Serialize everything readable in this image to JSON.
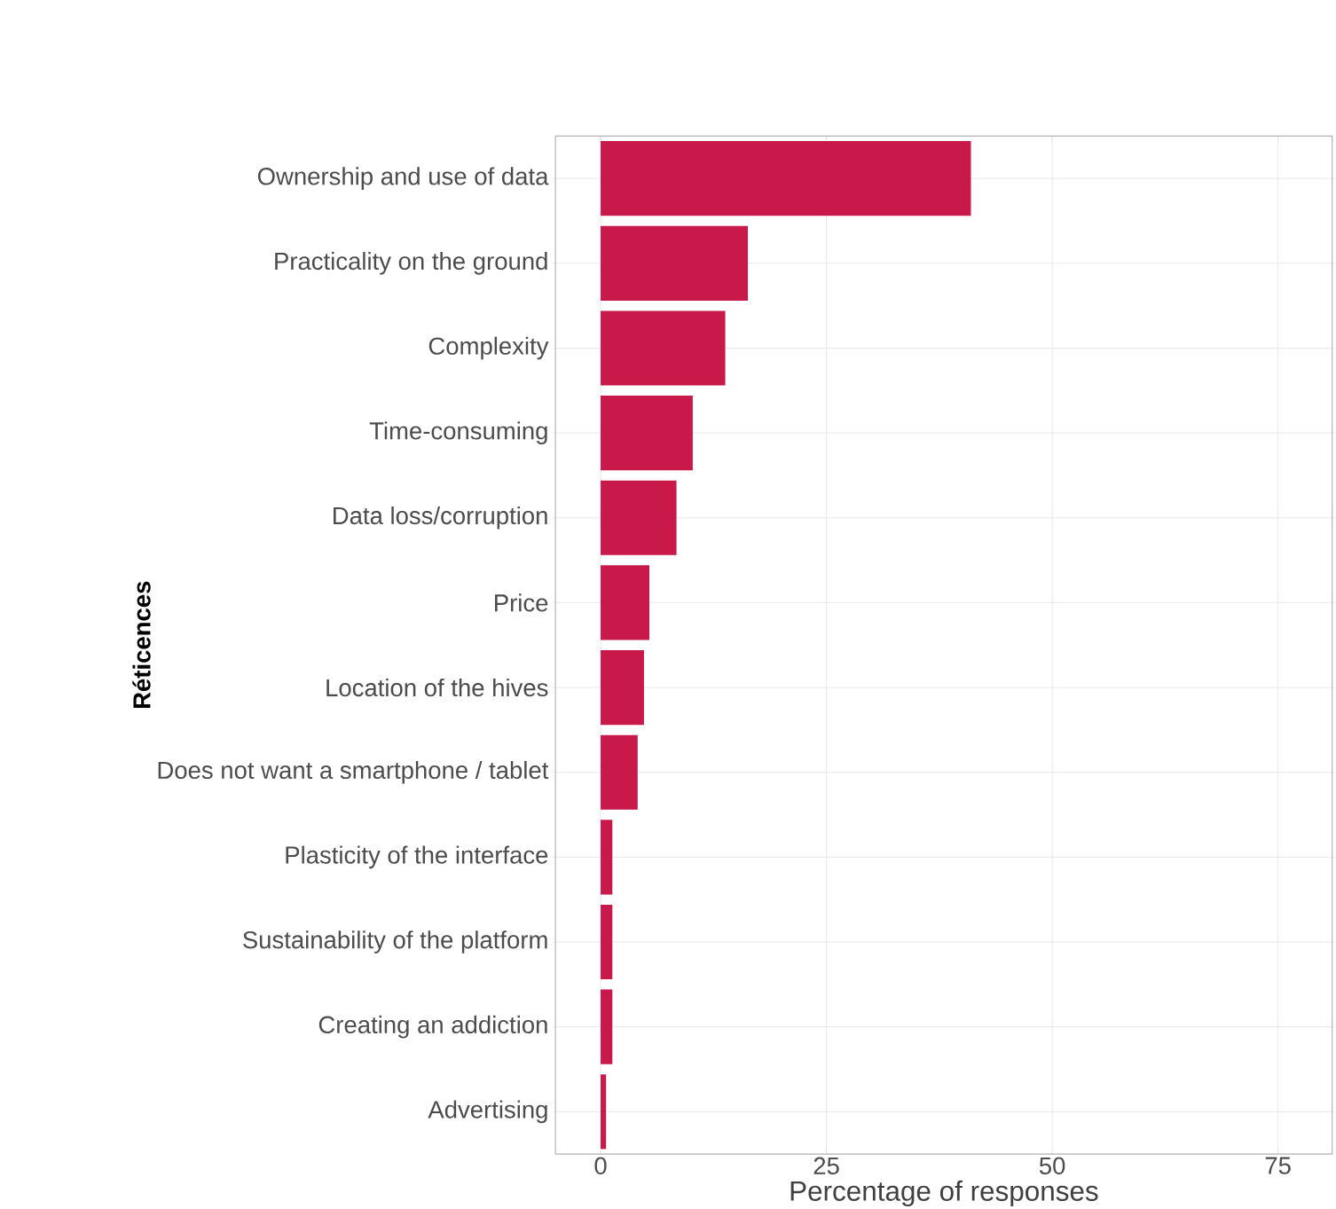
{
  "chart_data": {
    "type": "bar",
    "orientation": "horizontal",
    "xlabel": "Percentage of responses",
    "ylabel": "Réticences",
    "categories": [
      "Ownership and use of data",
      "Practicality on the ground",
      "Complexity",
      "Time-consuming",
      "Data loss/corruption",
      "Price",
      "Location of the hives",
      "Does not want a smartphone / tablet",
      "Plasticity of the interface",
      "Sustainability of the platform",
      "Creating an addiction",
      "Advertising"
    ],
    "values": [
      41.0,
      16.3,
      13.8,
      10.2,
      8.4,
      5.4,
      4.8,
      4.1,
      1.3,
      1.3,
      1.3,
      0.6
    ],
    "color": "#c8194a",
    "xlim": [
      -5,
      81
    ],
    "xticks": [
      0,
      25,
      50,
      75
    ],
    "grid": true
  }
}
